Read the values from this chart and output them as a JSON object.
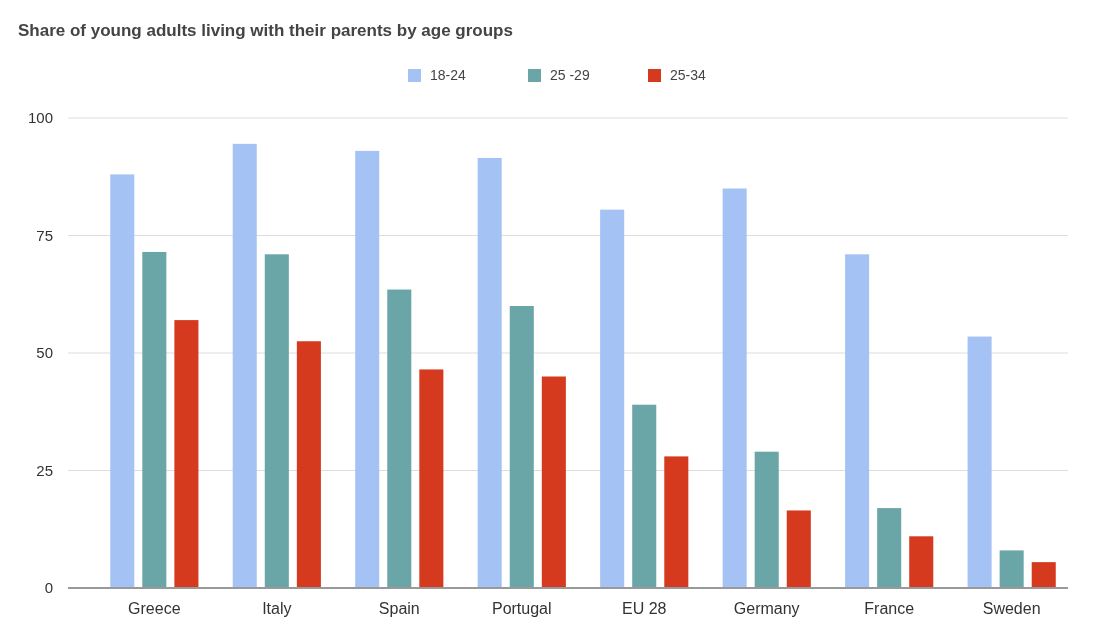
{
  "chart_data": {
    "type": "bar",
    "title": "Share of young adults living with their parents by age  groups",
    "categories": [
      "Greece",
      "Italy",
      "Spain",
      "Portugal",
      "EU 28",
      "Germany",
      "France",
      "Sweden"
    ],
    "series": [
      {
        "name": "18-24",
        "color": "#a4c2f4",
        "values": [
          88,
          94.5,
          93,
          91.5,
          80.5,
          85,
          71,
          53.5
        ]
      },
      {
        "name": "25 -29",
        "color": "#6aa5a7",
        "values": [
          71.5,
          71,
          63.5,
          60,
          39,
          29,
          17,
          8
        ]
      },
      {
        "name": "25-34",
        "color": "#d5391e",
        "values": [
          57,
          52.5,
          46.5,
          45,
          28,
          16.5,
          11,
          5.5
        ]
      }
    ],
    "ylim": [
      0,
      100
    ],
    "yticks": [
      0,
      25,
      50,
      75,
      100
    ],
    "grid": "y",
    "legend": "top"
  }
}
